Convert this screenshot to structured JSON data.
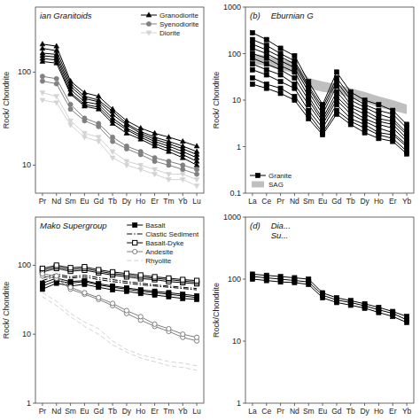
{
  "chart_data": [
    {
      "type": "line",
      "log": "y",
      "categories": [
        "Pr",
        "Nd",
        "Sm",
        "Eu",
        "Gd",
        "Tb",
        "Dy",
        "Ho",
        "Er",
        "Tm",
        "Yb",
        "Lu"
      ],
      "y_label": "Rock/ Chondrite",
      "ylim": [
        5,
        500
      ],
      "yticks": [
        10,
        100
      ],
      "legend": "upper right",
      "annotations": [
        "ian Granitoids"
      ],
      "series": [
        {
          "name": "Granodiorite",
          "color": "black",
          "marker": "triangle-up",
          "line_style": "solid",
          "values": [
            200,
            190,
            80,
            60,
            55,
            40,
            30,
            25,
            22,
            20,
            18,
            16
          ]
        },
        {
          "name": "Granodiorite",
          "color": "black",
          "marker": "triangle-up",
          "line_style": "solid",
          "values": [
            180,
            170,
            75,
            55,
            50,
            38,
            28,
            23,
            20,
            18,
            16,
            14
          ]
        },
        {
          "name": "Granodiorite",
          "color": "black",
          "marker": "triangle-up",
          "line_style": "solid",
          "values": [
            160,
            155,
            70,
            52,
            48,
            35,
            27,
            22,
            19,
            17,
            15,
            13
          ]
        },
        {
          "name": "Granodiorite",
          "color": "black",
          "marker": "triangle-up",
          "line_style": "solid",
          "values": [
            150,
            145,
            65,
            48,
            45,
            32,
            25,
            21,
            18,
            16,
            14,
            12
          ]
        },
        {
          "name": "Granodiorite",
          "color": "black",
          "marker": "triangle-up",
          "line_style": "solid",
          "values": [
            140,
            135,
            60,
            45,
            42,
            30,
            24,
            20,
            17,
            15,
            13,
            11
          ]
        },
        {
          "name": "Granodiorite",
          "color": "black",
          "marker": "triangle-up",
          "line_style": "solid",
          "values": [
            130,
            125,
            58,
            43,
            40,
            28,
            22,
            19,
            16,
            14,
            12,
            10
          ]
        },
        {
          "name": "Syenodiorite",
          "color": "gray",
          "marker": "circle",
          "line_style": "solid",
          "values": [
            90,
            85,
            45,
            32,
            28,
            20,
            16,
            14,
            12,
            11,
            10,
            9
          ]
        },
        {
          "name": "Syenodiorite",
          "color": "gray",
          "marker": "circle",
          "line_style": "solid",
          "values": [
            80,
            75,
            40,
            30,
            26,
            18,
            15,
            13,
            11,
            10,
            9,
            8
          ]
        },
        {
          "name": "Diorite",
          "color": "lightgray",
          "marker": "triangle-down",
          "line_style": "solid",
          "values": [
            60,
            55,
            30,
            22,
            20,
            14,
            11,
            10,
            9,
            8,
            8,
            7
          ]
        },
        {
          "name": "Diorite",
          "color": "lightgray",
          "marker": "triangle-down",
          "line_style": "solid",
          "values": [
            50,
            47,
            27,
            20,
            18,
            12,
            10,
            9,
            8,
            7,
            7,
            6
          ]
        }
      ]
    },
    {
      "type": "line",
      "log": "y",
      "categories": [
        "La",
        "Ce",
        "Pr",
        "Nd",
        "Sm",
        "Eu",
        "Gd",
        "Tb",
        "Dy",
        "Ho",
        "Er",
        "Yb"
      ],
      "y_label": "Rock/ Chondrite",
      "ylim": [
        0.1,
        1000
      ],
      "yticks": [
        0.1,
        1,
        10,
        100,
        1000
      ],
      "legend": "lower left",
      "annotations": [
        "(b)",
        "Eburnian G"
      ],
      "series": [
        {
          "name": "Granite",
          "color": "black",
          "marker": "square",
          "line_style": "solid",
          "values": [
            280,
            200,
            130,
            90,
            25,
            8,
            40,
            15,
            10,
            8,
            6,
            3
          ]
        },
        {
          "name": "Granite",
          "color": "black",
          "marker": "square",
          "line_style": "solid",
          "values": [
            200,
            150,
            100,
            70,
            20,
            7,
            30,
            12,
            8,
            6,
            5,
            2.5
          ]
        },
        {
          "name": "Granite",
          "color": "black",
          "marker": "square",
          "line_style": "solid",
          "values": [
            160,
            120,
            85,
            60,
            18,
            6,
            25,
            10,
            7,
            5,
            4,
            2
          ]
        },
        {
          "name": "Granite",
          "color": "black",
          "marker": "square",
          "line_style": "solid",
          "values": [
            130,
            100,
            70,
            50,
            15,
            5,
            20,
            8,
            6,
            4,
            3.5,
            1.8
          ]
        },
        {
          "name": "Granite",
          "color": "black",
          "marker": "square",
          "line_style": "solid",
          "values": [
            100,
            80,
            55,
            40,
            12,
            4,
            15,
            7,
            5,
            3.5,
            3,
            1.5
          ]
        },
        {
          "name": "Granite",
          "color": "black",
          "marker": "square",
          "line_style": "solid",
          "values": [
            80,
            60,
            45,
            30,
            10,
            3.5,
            12,
            6,
            4,
            3,
            2.5,
            1.3
          ]
        },
        {
          "name": "Granite",
          "color": "black",
          "marker": "square",
          "line_style": "solid",
          "values": [
            60,
            45,
            35,
            22,
            8,
            3,
            10,
            5,
            3.5,
            2.5,
            2,
            1.1
          ]
        },
        {
          "name": "Granite",
          "color": "black",
          "marker": "square",
          "line_style": "solid",
          "values": [
            45,
            35,
            25,
            18,
            6,
            2.5,
            8,
            4,
            3,
            2,
            1.8,
            1.0
          ]
        },
        {
          "name": "Granite",
          "color": "black",
          "marker": "square",
          "line_style": "solid",
          "values": [
            30,
            22,
            18,
            12,
            5,
            2,
            6,
            3.5,
            2.5,
            1.8,
            1.5,
            0.8
          ]
        },
        {
          "name": "Granite",
          "color": "black",
          "marker": "square",
          "line_style": "solid",
          "values": [
            22,
            18,
            14,
            10,
            4,
            1.8,
            5,
            3,
            2,
            1.5,
            1.3,
            0.7
          ]
        },
        {
          "name": "SAG",
          "type": "band",
          "color": "gray",
          "values": [
            100,
            90,
            75,
            65,
            30,
            25,
            22,
            18,
            15,
            12,
            10,
            8
          ],
          "lower": [
            60,
            55,
            45,
            38,
            18,
            15,
            14,
            11,
            9,
            7,
            6,
            5
          ]
        }
      ]
    },
    {
      "type": "line",
      "log": "y",
      "categories": [
        "Pr",
        "Nd",
        "Sm",
        "Eu",
        "Gd",
        "Tb",
        "Dy",
        "Ho",
        "Er",
        "Tm",
        "Yb",
        "Lu"
      ],
      "y_label": "Rock/ Chondrite",
      "ylim": [
        1,
        500
      ],
      "yticks": [
        1,
        10,
        100
      ],
      "legend": "upper right",
      "annotations": [
        "Mako Supergroup"
      ],
      "series": [
        {
          "name": "Basalt",
          "color": "black",
          "marker": "square",
          "line_style": "solid",
          "values": [
            50,
            60,
            55,
            58,
            52,
            48,
            45,
            42,
            40,
            38,
            36,
            34
          ]
        },
        {
          "name": "Basalt",
          "color": "black",
          "marker": "square",
          "line_style": "solid",
          "values": [
            45,
            55,
            50,
            53,
            48,
            44,
            42,
            39,
            37,
            35,
            33,
            32
          ]
        },
        {
          "name": "Basalt",
          "color": "black",
          "marker": "square",
          "line_style": "solid",
          "values": [
            55,
            65,
            58,
            60,
            54,
            50,
            47,
            44,
            42,
            40,
            38,
            36
          ]
        },
        {
          "name": "Clastic Sediment",
          "color": "black",
          "marker": "none",
          "line_style": "dashdot",
          "values": [
            60,
            70,
            65,
            68,
            62,
            58,
            55,
            52,
            50,
            48,
            46,
            44
          ]
        },
        {
          "name": "Clastic Sediment",
          "color": "black",
          "marker": "none",
          "line_style": "dashdot",
          "values": [
            65,
            75,
            68,
            72,
            66,
            62,
            58,
            55,
            52,
            50,
            48,
            46
          ]
        },
        {
          "name": "Basalt-Dyke",
          "color": "black",
          "marker": "square-open",
          "line_style": "solid",
          "values": [
            80,
            90,
            82,
            85,
            78,
            72,
            68,
            64,
            62,
            58,
            56,
            54
          ]
        },
        {
          "name": "Basalt-Dyke",
          "color": "black",
          "marker": "square-open",
          "line_style": "solid",
          "values": [
            85,
            95,
            87,
            90,
            82,
            76,
            72,
            68,
            65,
            62,
            59,
            57
          ]
        },
        {
          "name": "Basalt-Dyke",
          "color": "black",
          "marker": "square-open",
          "line_style": "solid",
          "values": [
            90,
            100,
            92,
            95,
            86,
            80,
            76,
            72,
            68,
            65,
            62,
            60
          ]
        },
        {
          "name": "Andesite",
          "color": "gray",
          "marker": "circle-open",
          "line_style": "solid",
          "values": [
            70,
            65,
            45,
            38,
            32,
            26,
            20,
            16,
            13,
            11,
            9,
            8
          ]
        },
        {
          "name": "Andesite",
          "color": "gray",
          "marker": "circle-open",
          "line_style": "solid",
          "values": [
            75,
            70,
            48,
            40,
            34,
            28,
            22,
            18,
            14,
            12,
            10,
            9
          ]
        },
        {
          "name": "Rhyolite",
          "color": "lightgray",
          "marker": "none",
          "line_style": "dashed",
          "values": [
            40,
            30,
            20,
            15,
            12,
            8,
            6,
            5,
            4.5,
            4,
            3.8,
            3.5
          ]
        },
        {
          "name": "Rhyolite",
          "color": "lightgray",
          "marker": "none",
          "line_style": "dashed",
          "values": [
            35,
            26,
            18,
            13,
            10,
            7,
            5.5,
            4.5,
            4,
            3.5,
            3.3,
            3
          ]
        }
      ]
    },
    {
      "type": "line",
      "log": "y",
      "categories": [
        "La",
        "Ce",
        "Pr",
        "Nd",
        "Sm",
        "Eu",
        "Gd",
        "Tb",
        "Dy",
        "Ho",
        "Er",
        "Yb"
      ],
      "y_label": "Rock/Chondrite",
      "ylim": [
        1,
        1000
      ],
      "yticks": [
        1,
        10,
        100,
        1000
      ],
      "annotations": [
        "(d)",
        "Dia...\nSu..."
      ],
      "series": [
        {
          "color": "black",
          "marker": "square",
          "line_style": "solid",
          "values": [
            120,
            115,
            110,
            105,
            100,
            60,
            50,
            45,
            40,
            35,
            30,
            25
          ]
        },
        {
          "color": "black",
          "marker": "square",
          "line_style": "solid",
          "values": [
            110,
            105,
            100,
            95,
            90,
            55,
            46,
            42,
            37,
            32,
            28,
            22
          ]
        },
        {
          "color": "black",
          "marker": "square",
          "line_style": "solid",
          "values": [
            100,
            95,
            90,
            88,
            82,
            50,
            42,
            38,
            34,
            29,
            25,
            20
          ]
        }
      ]
    }
  ]
}
